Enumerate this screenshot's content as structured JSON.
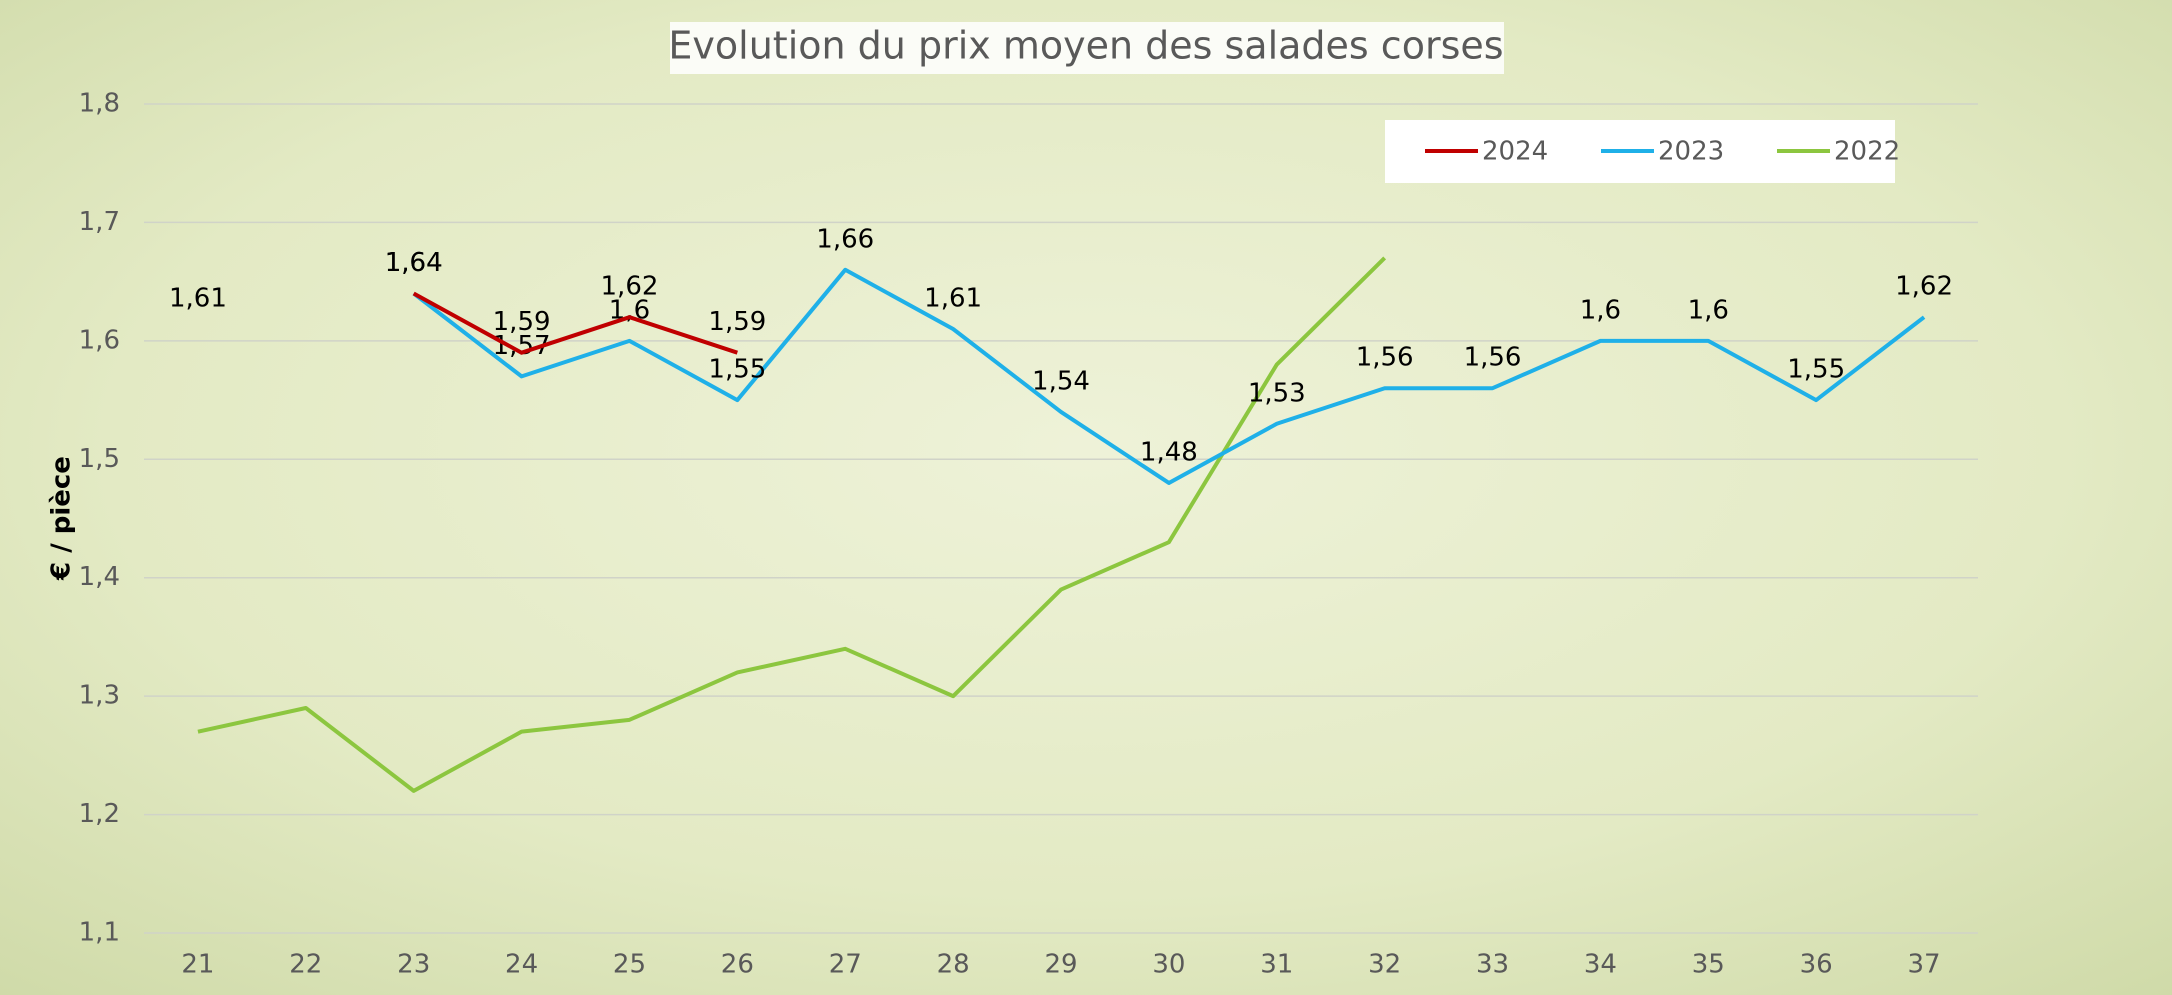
{
  "chart_data": {
    "type": "line",
    "title": "Evolution du prix moyen des salades corses",
    "y_label": "€ / pièce",
    "categories": [
      "21",
      "22",
      "23",
      "24",
      "25",
      "26",
      "27",
      "28",
      "29",
      "30",
      "31",
      "32",
      "33",
      "34",
      "35",
      "36",
      "37"
    ],
    "series": [
      {
        "name": "2024",
        "color": "#c00000",
        "values": [
          null,
          null,
          1.64,
          1.59,
          1.62,
          1.59,
          null,
          null,
          null,
          null,
          null,
          null,
          null,
          null,
          null,
          null,
          null
        ],
        "value_labels": [
          null,
          null,
          "1,64",
          "1,59",
          "1,62",
          "1,59",
          null,
          null,
          null,
          null,
          null,
          null,
          null,
          null,
          null,
          null,
          null
        ]
      },
      {
        "name": "2023",
        "color": "#1fb0e8",
        "values": [
          1.61,
          null,
          1.64,
          1.57,
          1.6,
          1.55,
          1.66,
          1.61,
          1.54,
          1.48,
          1.53,
          1.56,
          1.56,
          1.6,
          1.6,
          1.55,
          1.62
        ],
        "value_labels": [
          "1,61",
          null,
          "1,64",
          "1,57",
          "1,6",
          "1,55",
          "1,66",
          "1,61",
          "1,54",
          "1,48",
          "1,53",
          "1,56",
          "1,56",
          "1,6",
          "1,6",
          "1,55",
          "1,62"
        ]
      },
      {
        "name": "2022",
        "color": "#8cc63f",
        "values": [
          1.27,
          1.29,
          1.22,
          1.27,
          1.28,
          1.32,
          1.34,
          1.3,
          1.39,
          1.43,
          1.58,
          1.67,
          null,
          null,
          null,
          null,
          null
        ]
      }
    ],
    "ylim": [
      1.1,
      1.8
    ],
    "yticks": [
      {
        "value": 1.1,
        "label": "1,1"
      },
      {
        "value": 1.2,
        "label": "1,2"
      },
      {
        "value": 1.3,
        "label": "1,3"
      },
      {
        "value": 1.4,
        "label": "1,4"
      },
      {
        "value": 1.5,
        "label": "1,5"
      },
      {
        "value": 1.6,
        "label": "1,6"
      },
      {
        "value": 1.7,
        "label": "1,7"
      },
      {
        "value": 1.8,
        "label": "1,8"
      }
    ],
    "grid": true,
    "legend": "top-right"
  }
}
